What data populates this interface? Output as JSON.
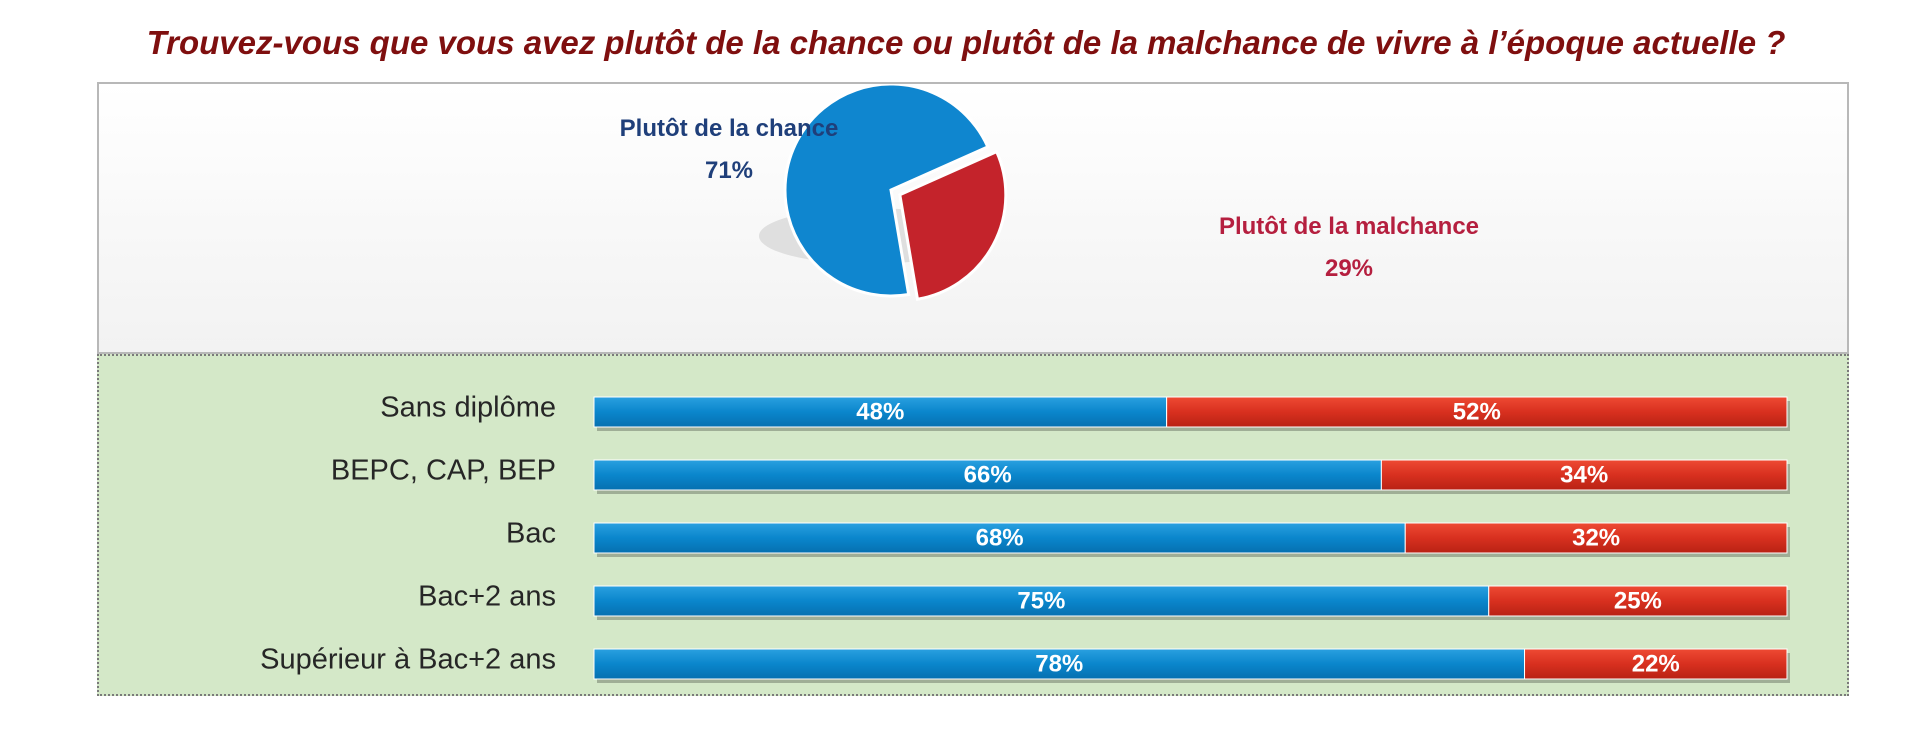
{
  "title": "Trouvez-vous que vous avez plutôt de la chance ou plutôt de la malchance de vivre à l’époque actuelle ?",
  "colors": {
    "title": "#7f0f0f",
    "chance": "#0a86cc",
    "malchance": "#d8301f",
    "pie_chance": "#0f86cf",
    "pie_malchance": "#c4232b",
    "label_chance": "#1f3f7a",
    "label_malchance": "#b51f3f",
    "bars_background": "#d4e8c8"
  },
  "chart_data": [
    {
      "type": "pie",
      "slices": [
        {
          "label": "Plutôt de la chance",
          "value": 71,
          "display": "71%"
        },
        {
          "label": "Plutôt de la malchance",
          "value": 29,
          "display": "29%"
        }
      ]
    },
    {
      "type": "bar",
      "orientation": "horizontal",
      "stacked": true,
      "categories": [
        "Sans diplôme",
        "BEPC, CAP, BEP",
        "Bac",
        "Bac+2 ans",
        "Supérieur à Bac+2 ans"
      ],
      "series": [
        {
          "key": "chance",
          "values": [
            48,
            66,
            68,
            75,
            78
          ],
          "labels": [
            "48%",
            "66%",
            "68%",
            "75%",
            "78%"
          ]
        },
        {
          "key": "malchance",
          "values": [
            52,
            34,
            32,
            25,
            22
          ],
          "labels": [
            "52%",
            "34%",
            "32%",
            "25%",
            "22%"
          ]
        }
      ],
      "xlim": [
        0,
        100
      ]
    }
  ]
}
